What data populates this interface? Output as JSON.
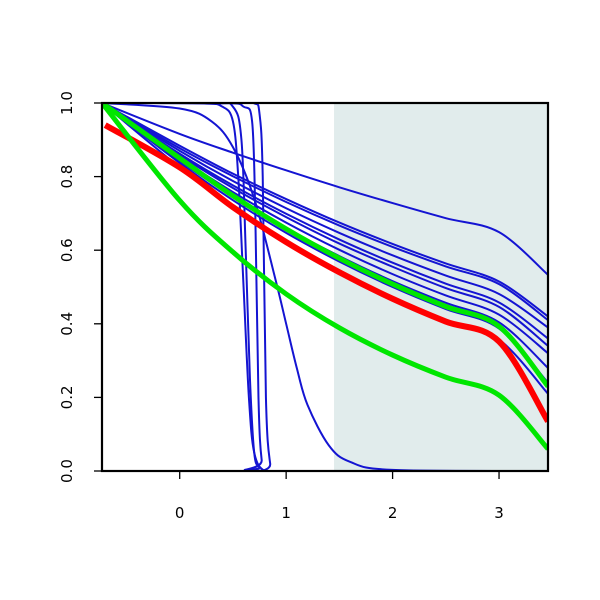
{
  "chart_data": {
    "type": "line",
    "title": "",
    "xlabel": "",
    "ylabel": "",
    "xlim": [
      -0.73,
      3.46
    ],
    "ylim": [
      0,
      1
    ],
    "x_ticks": [
      0,
      1,
      2,
      3
    ],
    "y_ticks": [
      0.0,
      0.2,
      0.4,
      0.6,
      0.8,
      1.0
    ],
    "x_tick_labels": [
      "0",
      "1",
      "2",
      "3"
    ],
    "y_tick_labels": [
      "0.0",
      "0.2",
      "0.4",
      "0.6",
      "0.8",
      "1.0"
    ],
    "grid": false,
    "shaded_region": {
      "x": [
        1.45,
        3.46
      ],
      "color": "#e1ecec"
    },
    "colors": {
      "blue": "#1414d2",
      "red": "#ff0000",
      "green": "#00e600"
    },
    "series": [
      {
        "color": "blue",
        "width": 2,
        "x": [
          -0.73,
          0.0,
          0.5,
          1.0,
          1.5,
          2.0,
          2.5,
          3.0,
          3.46
        ],
        "y": [
          1.0,
          0.916,
          0.865,
          0.817,
          0.771,
          0.728,
          0.687,
          0.649,
          0.533
        ]
      },
      {
        "color": "blue",
        "width": 2,
        "x": [
          -0.73,
          0.0,
          0.5,
          1.0,
          1.5,
          2.0,
          2.5,
          3.0,
          3.46
        ],
        "y": [
          1.0,
          0.884,
          0.808,
          0.739,
          0.675,
          0.617,
          0.564,
          0.515,
          0.42
        ]
      },
      {
        "color": "blue",
        "width": 2,
        "x": [
          -0.73,
          0.0,
          0.5,
          1.0,
          1.5,
          2.0,
          2.5,
          3.0,
          3.46
        ],
        "y": [
          1.0,
          0.877,
          0.801,
          0.731,
          0.667,
          0.609,
          0.556,
          0.508,
          0.41
        ]
      },
      {
        "color": "blue",
        "width": 2,
        "x": [
          -0.73,
          0.0,
          0.5,
          1.0,
          1.5,
          2.0,
          2.5,
          3.0,
          3.46
        ],
        "y": [
          1.0,
          0.87,
          0.788,
          0.714,
          0.647,
          0.586,
          0.531,
          0.481,
          0.39
        ]
      },
      {
        "color": "blue",
        "width": 2,
        "x": [
          -0.73,
          0.0,
          0.5,
          1.0,
          1.5,
          2.0,
          2.5,
          3.0,
          3.46
        ],
        "y": [
          1.0,
          0.862,
          0.776,
          0.699,
          0.629,
          0.566,
          0.509,
          0.458,
          0.36
        ]
      },
      {
        "color": "blue",
        "width": 2,
        "x": [
          -0.73,
          0.0,
          0.5,
          1.0,
          1.5,
          2.0,
          2.5,
          3.0,
          3.46
        ],
        "y": [
          1.0,
          0.858,
          0.769,
          0.69,
          0.618,
          0.555,
          0.497,
          0.446,
          0.34
        ]
      },
      {
        "color": "blue",
        "width": 2,
        "x": [
          -0.73,
          0.0,
          0.5,
          1.0,
          1.5,
          2.0,
          2.5,
          3.0,
          3.46
        ],
        "y": [
          1.0,
          0.851,
          0.758,
          0.675,
          0.601,
          0.535,
          0.477,
          0.425,
          0.32
        ]
      },
      {
        "color": "blue",
        "width": 2,
        "x": [
          -0.73,
          0.0,
          0.5,
          1.0,
          1.5,
          2.0,
          2.5,
          3.0,
          3.46
        ],
        "y": [
          1.0,
          0.843,
          0.746,
          0.66,
          0.584,
          0.516,
          0.457,
          0.404,
          0.28
        ]
      },
      {
        "color": "blue",
        "width": 2,
        "x": [
          -0.73,
          0.0,
          0.5,
          1.0,
          1.5,
          2.0,
          2.5,
          3.0,
          3.46
        ],
        "y": [
          1.0,
          0.837,
          0.736,
          0.647,
          0.569,
          0.5,
          0.44,
          0.387,
          0.24
        ]
      },
      {
        "color": "blue",
        "width": 2,
        "x": [
          -0.73,
          0.0,
          0.5,
          1.0,
          1.5,
          2.0,
          2.5,
          3.0,
          3.46
        ],
        "y": [
          1.0,
          0.825,
          0.718,
          0.624,
          0.543,
          0.472,
          0.411,
          0.357,
          0.21
        ]
      },
      {
        "color": "blue",
        "width": 2,
        "x": [
          -0.73,
          0.2,
          0.4,
          0.5,
          0.55,
          0.6,
          0.65,
          0.7,
          0.8,
          1.0,
          3.46
        ],
        "y": [
          1.0,
          0.999,
          0.99,
          0.95,
          0.8,
          0.5,
          0.2,
          0.05,
          0.0,
          0.0,
          0.0
        ]
      },
      {
        "color": "blue",
        "width": 2,
        "x": [
          -0.73,
          0.3,
          0.5,
          0.58,
          0.62,
          0.66,
          0.7,
          0.75,
          0.85,
          3.46
        ],
        "y": [
          1.0,
          0.999,
          0.99,
          0.9,
          0.6,
          0.25,
          0.05,
          0.01,
          0.0,
          0.0
        ]
      },
      {
        "color": "blue",
        "width": 2,
        "x": [
          -0.73,
          0.4,
          0.6,
          0.68,
          0.71,
          0.74,
          0.77,
          0.82,
          3.46
        ],
        "y": [
          1.0,
          1.0,
          0.99,
          0.95,
          0.7,
          0.2,
          0.03,
          0.0,
          0.0
        ]
      },
      {
        "color": "blue",
        "width": 2,
        "x": [
          -0.73,
          0.5,
          0.7,
          0.75,
          0.78,
          0.81,
          0.85,
          0.9,
          3.46
        ],
        "y": [
          1.0,
          1.0,
          0.999,
          0.97,
          0.8,
          0.2,
          0.02,
          0.0,
          0.0
        ]
      },
      {
        "color": "blue",
        "width": 2,
        "x": [
          -0.73,
          0.0,
          0.3,
          0.5,
          0.7,
          0.9,
          1.0,
          1.1,
          1.2,
          1.4,
          1.6,
          2.0,
          3.46
        ],
        "y": [
          1.0,
          0.985,
          0.95,
          0.88,
          0.74,
          0.52,
          0.4,
          0.28,
          0.18,
          0.07,
          0.025,
          0.003,
          0.0
        ]
      },
      {
        "color": "green",
        "width": 5,
        "x": [
          -0.73,
          0.0,
          0.5,
          1.0,
          1.5,
          2.0,
          2.5,
          3.0,
          3.46
        ],
        "y": [
          1.0,
          0.85,
          0.748,
          0.658,
          0.578,
          0.508,
          0.447,
          0.393,
          0.23
        ]
      },
      {
        "color": "red",
        "width": 6,
        "x": [
          -0.7,
          0.0,
          0.5,
          1.0,
          1.5,
          2.0,
          2.5,
          3.0,
          3.46
        ],
        "y": [
          0.94,
          0.825,
          0.717,
          0.622,
          0.54,
          0.468,
          0.406,
          0.352,
          0.135
        ]
      },
      {
        "color": "green",
        "width": 5,
        "x": [
          -0.73,
          0.0,
          0.5,
          1.0,
          1.5,
          2.0,
          2.5,
          3.0,
          3.46
        ],
        "y": [
          1.0,
          0.735,
          0.595,
          0.481,
          0.389,
          0.315,
          0.255,
          0.206,
          0.06
        ]
      }
    ]
  }
}
